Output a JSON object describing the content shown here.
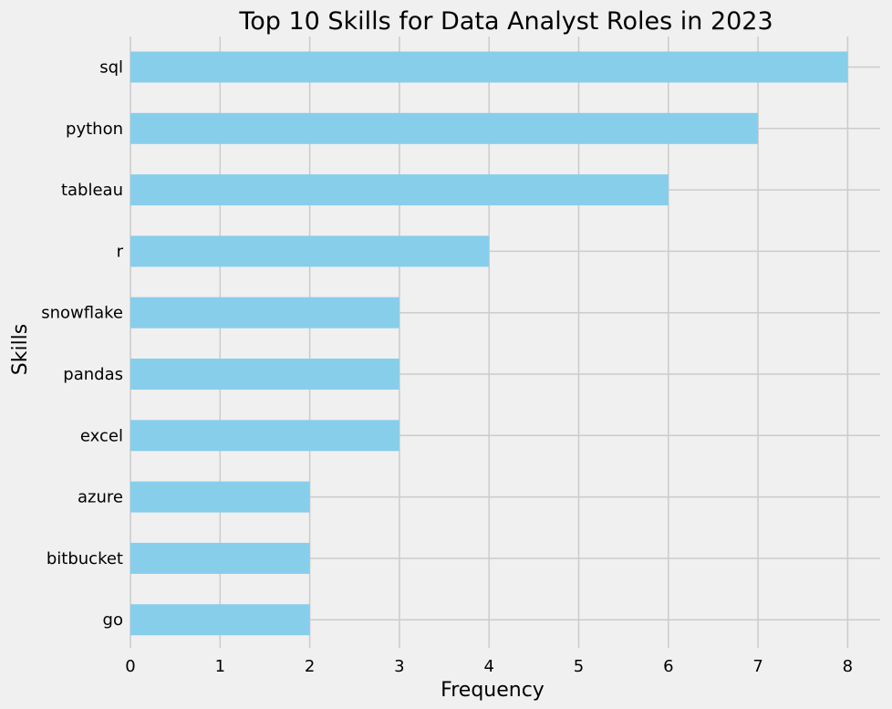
{
  "chart_data": {
    "type": "bar",
    "orientation": "horizontal",
    "title": "Top 10 Skills for Data Analyst Roles in 2023",
    "xlabel": "Frequency",
    "ylabel": "Skills",
    "categories": [
      "sql",
      "python",
      "tableau",
      "r",
      "snowflake",
      "pandas",
      "excel",
      "azure",
      "bitbucket",
      "go"
    ],
    "values": [
      8,
      7,
      6,
      4,
      3,
      3,
      3,
      2,
      2,
      2
    ],
    "xlim": [
      0,
      8.36
    ],
    "xticks": [
      "0",
      "1",
      "2",
      "3",
      "4",
      "5",
      "6",
      "7",
      "8"
    ],
    "grid": true,
    "legend": "none",
    "bar_color": "#87ceeb",
    "background_color": "#f0f0f0",
    "grid_color": "#cbcbcb"
  }
}
